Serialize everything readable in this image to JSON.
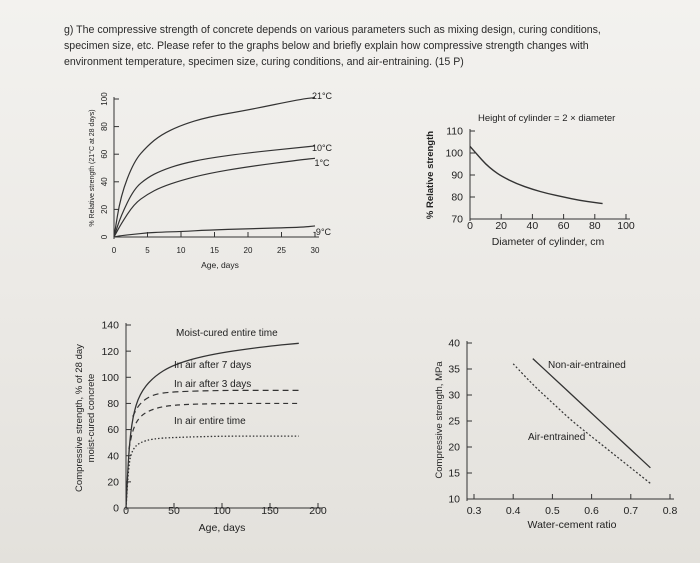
{
  "question": {
    "lines": [
      "g) The compressive strength of concrete depends on various parameters such as mixing design, curing conditions,",
      "specimen size, etc. Please refer to the graphs below and briefly explain how compressive strength changes with",
      "environment temperature, specimen size, curing conditions, and air-entraining. (15 P)"
    ]
  },
  "chart_data": [
    {
      "type": "line",
      "xlabel": "Age, days",
      "ylabel": "% Relative strength (21°C at 28 days)",
      "xlim": [
        0,
        30
      ],
      "ylim": [
        0,
        100
      ],
      "xticks": [
        "0",
        "5",
        "10",
        "15",
        "20",
        "25",
        "30"
      ],
      "yticks": [
        "0",
        "20",
        "40",
        "60",
        "80",
        "100"
      ],
      "series": [
        {
          "name": "21°C",
          "x": [
            0,
            1,
            3,
            5,
            7,
            10,
            14,
            20,
            28,
            30
          ],
          "y": [
            0,
            30,
            55,
            66,
            74,
            81,
            87,
            92,
            100,
            101
          ]
        },
        {
          "name": "10°C",
          "x": [
            0,
            1,
            3,
            5,
            7,
            10,
            14,
            20,
            28,
            30
          ],
          "y": [
            0,
            15,
            35,
            43,
            48,
            53,
            57,
            61,
            65,
            66
          ]
        },
        {
          "name": "1°C",
          "x": [
            0,
            1,
            3,
            5,
            7,
            10,
            14,
            20,
            28,
            30
          ],
          "y": [
            0,
            9,
            24,
            31,
            36,
            41,
            46,
            51,
            56,
            57
          ]
        },
        {
          "name": "-9°C",
          "x": [
            0,
            1,
            3,
            5,
            7,
            10,
            14,
            20,
            28,
            30
          ],
          "y": [
            0,
            1,
            2,
            3,
            3.5,
            4,
            5,
            6,
            7,
            8
          ]
        }
      ]
    },
    {
      "type": "line",
      "title": "Height of cylinder = 2 × diameter",
      "xlabel": "Diameter of cylinder, cm",
      "ylabel": "% Relative strength",
      "xlim": [
        0,
        100
      ],
      "ylim": [
        70,
        110
      ],
      "xticks": [
        "0",
        "20",
        "40",
        "60",
        "80",
        "100"
      ],
      "yticks": [
        "70",
        "80",
        "90",
        "100",
        "110"
      ],
      "series": [
        {
          "x": [
            0,
            5,
            10,
            15,
            20,
            30,
            40,
            50,
            60,
            70,
            80,
            85
          ],
          "y": [
            103,
            99,
            95,
            92,
            89.5,
            86,
            83.5,
            81.5,
            80,
            78.5,
            77.5,
            77
          ]
        }
      ]
    },
    {
      "type": "line",
      "xlabel": "Age, days",
      "ylabel": "Compressive strength, % of 28 day moist-cured concrete",
      "xlim": [
        0,
        200
      ],
      "ylim": [
        0,
        140
      ],
      "xticks": [
        "0",
        "50",
        "100",
        "150",
        "200"
      ],
      "yticks": [
        "0",
        "20",
        "40",
        "60",
        "80",
        "100",
        "120",
        "140"
      ],
      "annotations": [
        "Moist-cured entire time",
        "In air after 7 days",
        "In air after 3 days",
        "In air entire time"
      ],
      "series": [
        {
          "name": "Moist-cured entire time",
          "x": [
            0,
            3,
            7,
            14,
            28,
            50,
            90,
            150,
            180
          ],
          "y": [
            0,
            45,
            70,
            87,
            100,
            110,
            118,
            124,
            126
          ]
        },
        {
          "name": "In air after 7 days",
          "x": [
            7,
            14,
            28,
            50,
            100,
            150,
            180
          ],
          "y": [
            70,
            80,
            87,
            89,
            90,
            90,
            90
          ]
        },
        {
          "name": "In air after 3 days",
          "x": [
            3,
            7,
            14,
            28,
            50,
            100,
            150,
            180
          ],
          "y": [
            45,
            60,
            70,
            76,
            79,
            80,
            80,
            80
          ]
        },
        {
          "name": "In air entire time",
          "x": [
            0,
            3,
            7,
            14,
            28,
            50,
            100,
            150,
            180
          ],
          "y": [
            0,
            35,
            45,
            50,
            53,
            54,
            55,
            55,
            55
          ]
        }
      ]
    },
    {
      "type": "line",
      "xlabel": "Water-cement ratio",
      "ylabel": "Compressive strength, MPa",
      "xlim": [
        0.3,
        0.8
      ],
      "ylim": [
        10,
        40
      ],
      "xticks": [
        "0.3",
        "0.4",
        "0.5",
        "0.6",
        "0.7",
        "0.8"
      ],
      "yticks": [
        "10",
        "15",
        "20",
        "25",
        "30",
        "35",
        "40"
      ],
      "series": [
        {
          "name": "Non-air-entrained",
          "x": [
            0.45,
            0.5,
            0.55,
            0.6,
            0.65,
            0.7,
            0.75
          ],
          "y": [
            37,
            33.5,
            30,
            26.5,
            23,
            19.5,
            16
          ]
        },
        {
          "name": "Air-entrained",
          "x": [
            0.4,
            0.45,
            0.5,
            0.55,
            0.6,
            0.65,
            0.7,
            0.75
          ],
          "y": [
            36,
            32,
            28.5,
            25,
            22,
            19,
            16,
            13
          ]
        }
      ]
    }
  ]
}
